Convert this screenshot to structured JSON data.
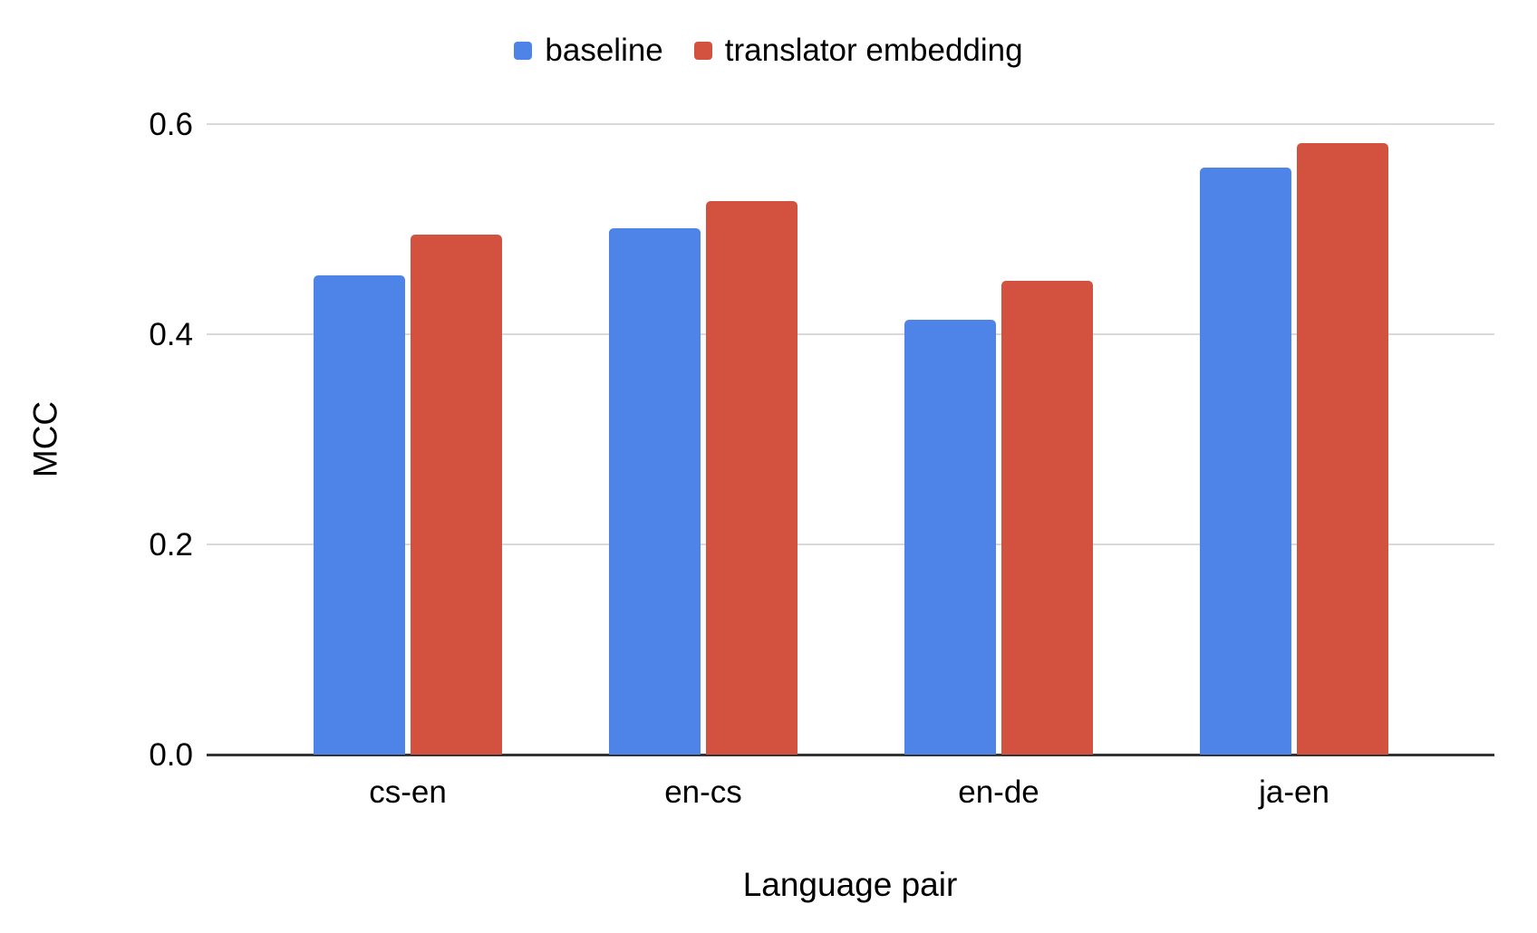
{
  "chart_data": {
    "type": "bar",
    "title": "",
    "categories": [
      "cs-en",
      "en-cs",
      "en-de",
      "ja-en"
    ],
    "series": [
      {
        "name": "baseline",
        "color": "#4e83e8",
        "values": [
          0.456,
          0.501,
          0.414,
          0.559
        ]
      },
      {
        "name": "translator embedding",
        "color": "#d2513f",
        "values": [
          0.495,
          0.527,
          0.451,
          0.582
        ]
      }
    ],
    "xlabel": "Language pair",
    "ylabel": "MCC",
    "ylim": [
      0,
      0.6
    ],
    "yticks": [
      0.0,
      0.2,
      0.4,
      0.6
    ],
    "ytick_labels": [
      "0.0",
      "0.2",
      "0.4",
      "0.6"
    ],
    "grid": "horizontal",
    "legend_position": "top",
    "colors": {
      "gridline": "#d9d9d9",
      "axis_line": "#333333",
      "text": "#000000",
      "background": "#ffffff"
    }
  }
}
